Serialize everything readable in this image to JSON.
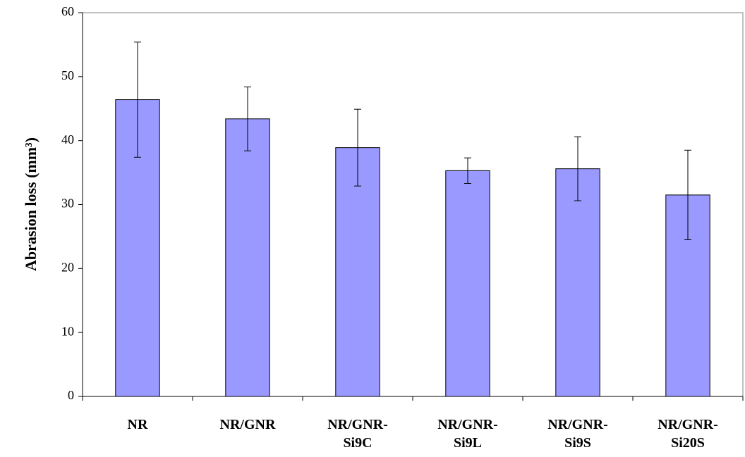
{
  "chart_data": {
    "type": "bar",
    "y_label": "Abrasion loss (mm³)",
    "categories": [
      "NR",
      "NR/GNR",
      "NR/GNR-Si9C",
      "NR/GNR-Si9L",
      "NR/GNR-Si9S",
      "NR/GNR-Si20S"
    ],
    "values": [
      46.4,
      43.4,
      38.9,
      35.3,
      35.6,
      31.5
    ],
    "errors": [
      9,
      5,
      6,
      2,
      5,
      7
    ],
    "color": "#9999ff",
    "ylim": [
      0,
      60
    ],
    "yticks": [
      0,
      10,
      20,
      30,
      40,
      50,
      60
    ],
    "grid": false
  }
}
